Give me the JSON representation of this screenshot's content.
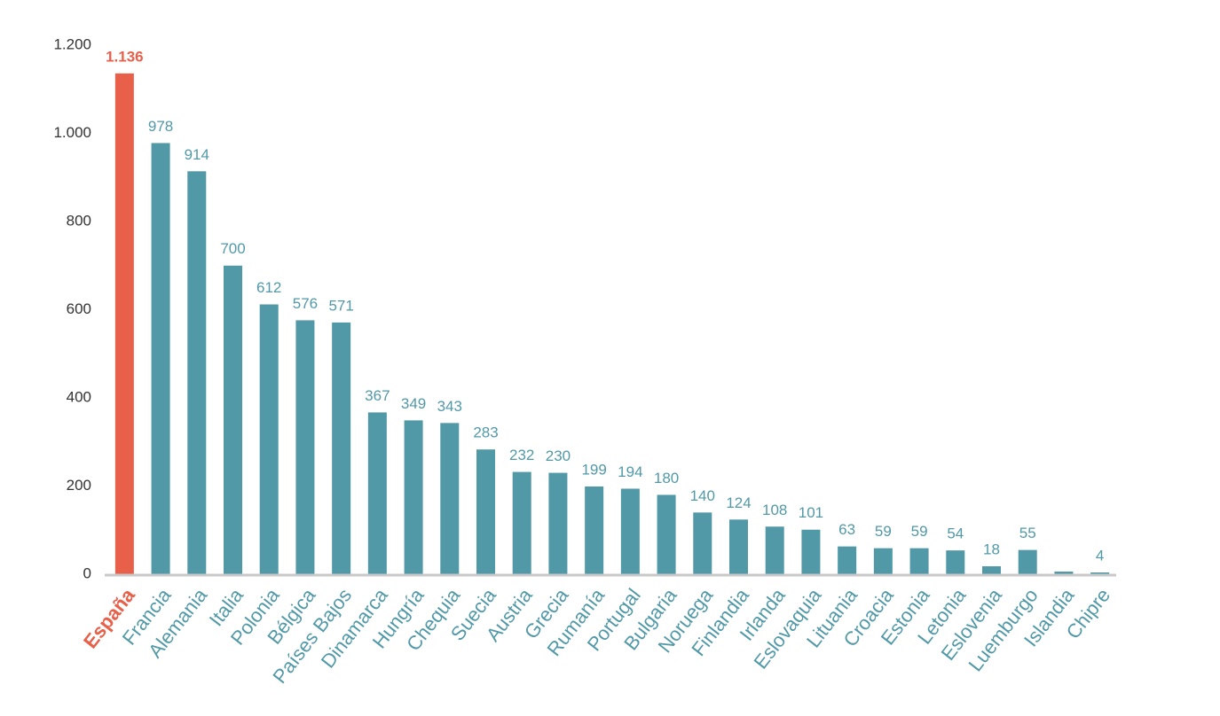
{
  "chart_data": {
    "type": "bar",
    "categories": [
      "España",
      "Francia",
      "Alemania",
      "Italia",
      "Polonia",
      "Bélgica",
      "Países Bajos",
      "Dinamarca",
      "Hungría",
      "Chequia",
      "Suecia",
      "Austria",
      "Grecia",
      "Rumanía",
      "Portugal",
      "Bulgaria",
      "Noruega",
      "Finlandia",
      "Irlanda",
      "Eslovaquia",
      "Lituania",
      "Croacia",
      "Estonia",
      "Letonia",
      "Eslovenia",
      "Luemburgo",
      "Islandia",
      "Chipre"
    ],
    "values": [
      1136,
      978,
      914,
      700,
      612,
      576,
      571,
      367,
      349,
      343,
      283,
      232,
      230,
      199,
      194,
      180,
      140,
      124,
      108,
      101,
      63,
      59,
      59,
      54,
      18,
      55,
      6,
      4
    ],
    "value_labels": [
      "1.136",
      "978",
      "914",
      "700",
      "612",
      "576",
      "571",
      "367",
      "349",
      "343",
      "283",
      "232",
      "230",
      "199",
      "194",
      "180",
      "140",
      "124",
      "108",
      "101",
      "63",
      "59",
      "59",
      "54",
      "18",
      "55",
      null,
      "4"
    ],
    "colors": [
      "#e8604a",
      "#5299a8",
      "#5299a8",
      "#5299a8",
      "#5299a8",
      "#5299a8",
      "#5299a8",
      "#5299a8",
      "#5299a8",
      "#5299a8",
      "#5299a8",
      "#5299a8",
      "#5299a8",
      "#5299a8",
      "#5299a8",
      "#5299a8",
      "#5299a8",
      "#5299a8",
      "#5299a8",
      "#5299a8",
      "#5299a8",
      "#5299a8",
      "#5299a8",
      "#5299a8",
      "#5299a8",
      "#5299a8",
      "#5299a8",
      "#5299a8"
    ],
    "ylim": [
      0,
      1200
    ],
    "yticks": [
      0,
      200,
      400,
      600,
      800,
      {
        "value": 1000,
        "label": "1.000"
      },
      {
        "value": 1200,
        "label": "1.200"
      }
    ],
    "grid": false
  }
}
